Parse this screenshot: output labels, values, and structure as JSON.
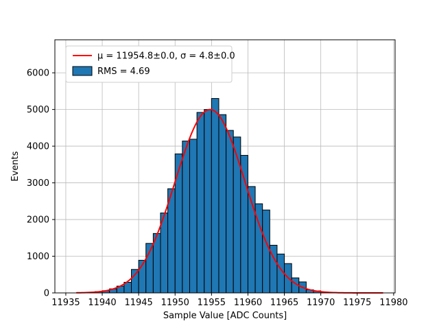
{
  "chart_data": {
    "type": "bar",
    "subtype": "histogram-with-gaussian-fit",
    "title": "",
    "xlabel": "Sample Value [ADC Counts]",
    "ylabel": "Events",
    "xlim": [
      11933.5,
      11980.2
    ],
    "ylim": [
      0,
      6900
    ],
    "xticks": [
      "11935",
      "11940",
      "11945",
      "11950",
      "11955",
      "11960",
      "11965",
      "11970",
      "11975",
      "11980"
    ],
    "xtick_values": [
      11935,
      11940,
      11945,
      11950,
      11955,
      11960,
      11965,
      11970,
      11975,
      11980
    ],
    "yticks": [
      "0",
      "1000",
      "2000",
      "3000",
      "4000",
      "5000",
      "6000"
    ],
    "ytick_values": [
      0,
      1000,
      2000,
      3000,
      4000,
      5000,
      6000
    ],
    "grid": true,
    "bin_width": 1,
    "bin_left_edges": [
      11938,
      11939,
      11940,
      11941,
      11942,
      11943,
      11944,
      11945,
      11946,
      11947,
      11948,
      11949,
      11950,
      11951,
      11952,
      11953,
      11954,
      11955,
      11956,
      11957,
      11958,
      11959,
      11960,
      11961,
      11962,
      11963,
      11964,
      11965,
      11966,
      11967,
      11968,
      11969,
      11970,
      11971
    ],
    "counts": [
      15,
      35,
      60,
      110,
      185,
      290,
      640,
      890,
      1350,
      1620,
      2180,
      2840,
      3790,
      4140,
      4190,
      4920,
      5000,
      5300,
      4860,
      4430,
      4250,
      3750,
      2900,
      2430,
      2260,
      1300,
      1060,
      800,
      410,
      300,
      85,
      55,
      25,
      10
    ],
    "fit": {
      "mu": 11954.8,
      "sigma": 4.8,
      "amplitude": 5000,
      "x_range": [
        11936.5,
        11978.5
      ]
    },
    "legend": {
      "position": "upper-left",
      "entries": [
        {
          "type": "line",
          "color": "#ff0000",
          "label": "μ = 11954.8±0.0, σ = 4.8±0.0"
        },
        {
          "type": "patch",
          "color": "#1f77b4",
          "label": "RMS = 4.69"
        }
      ]
    },
    "colors": {
      "bar_fill": "#1f77b4",
      "bar_edge": "#000000",
      "fit_line": "#ff0000",
      "grid": "#b9b9b9",
      "spine": "#000000",
      "legend_edge": "#cccccc",
      "background": "#ffffff"
    }
  }
}
